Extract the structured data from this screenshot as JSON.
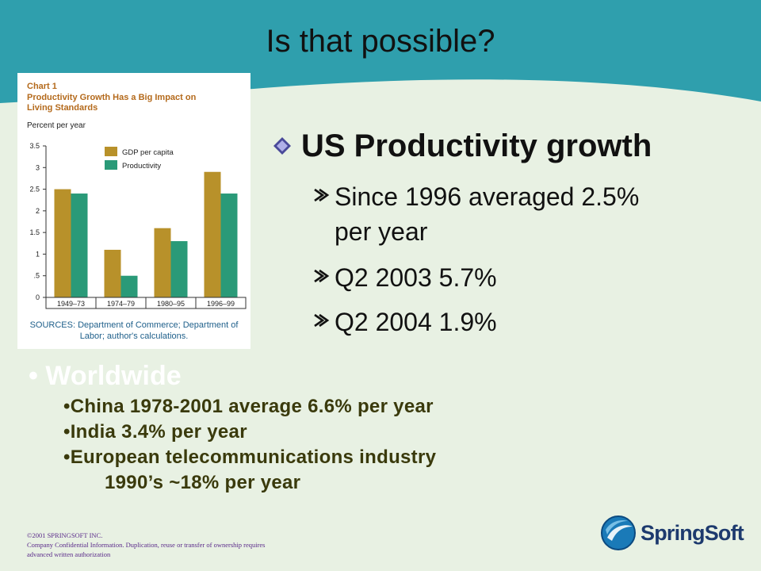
{
  "slide": {
    "title": "Is that possible?",
    "colors": {
      "header": "#2f9fad",
      "background": "#e8f1e3",
      "accent": "#8a8a1a"
    }
  },
  "chart": {
    "chart_no": "Chart 1",
    "title_line1": "Productivity Growth Has a Big Impact on",
    "title_line2": "Living Standards",
    "unit": "Percent per year",
    "sources_line1": "SOURCES: Department of Commerce; Department of",
    "sources_line2": "Labor; author's calculations."
  },
  "chart_data": {
    "type": "bar",
    "title": "Productivity Growth Has a Big Impact on Living Standards",
    "ylabel": "Percent per year",
    "categories": [
      "1949–73",
      "1974–79",
      "1980–95",
      "1996–99"
    ],
    "y_ticks": [
      "0",
      ".5",
      "1",
      "1.5",
      "2",
      "2.5",
      "3",
      "3.5"
    ],
    "ylim": [
      0,
      3.5
    ],
    "legend_position": "top-right",
    "series": [
      {
        "name": "GDP per capita",
        "color": "#b8912a",
        "values": [
          2.5,
          1.1,
          1.6,
          2.9
        ]
      },
      {
        "name": "Productivity",
        "color": "#2a9a78",
        "values": [
          2.4,
          0.5,
          1.3,
          2.4
        ]
      }
    ]
  },
  "content": {
    "heading": "US Productivity growth",
    "bullets": [
      {
        "line1": "Since 1996 averaged 2.5%",
        "line2": "per year"
      },
      {
        "line1": "Q2 2003 5.7%"
      },
      {
        "line1": "Q2 2004 1.9%"
      }
    ],
    "worldwide": "Worldwide",
    "world_items": [
      "•China 1978-2001 average 6.6% per year",
      "•India 3.4% per year",
      "•European telecommunications industry",
      "1990’s ~18% per year"
    ]
  },
  "footer": {
    "line1": "©2001 SPRINGSOFT INC.",
    "line2": "Company Confidential Information. Duplication, reuse or transfer of ownership requires",
    "line3": "advanced written authorization"
  },
  "logo": {
    "text": "SpringSoft",
    "icon": "springsoft-logo-icon"
  }
}
